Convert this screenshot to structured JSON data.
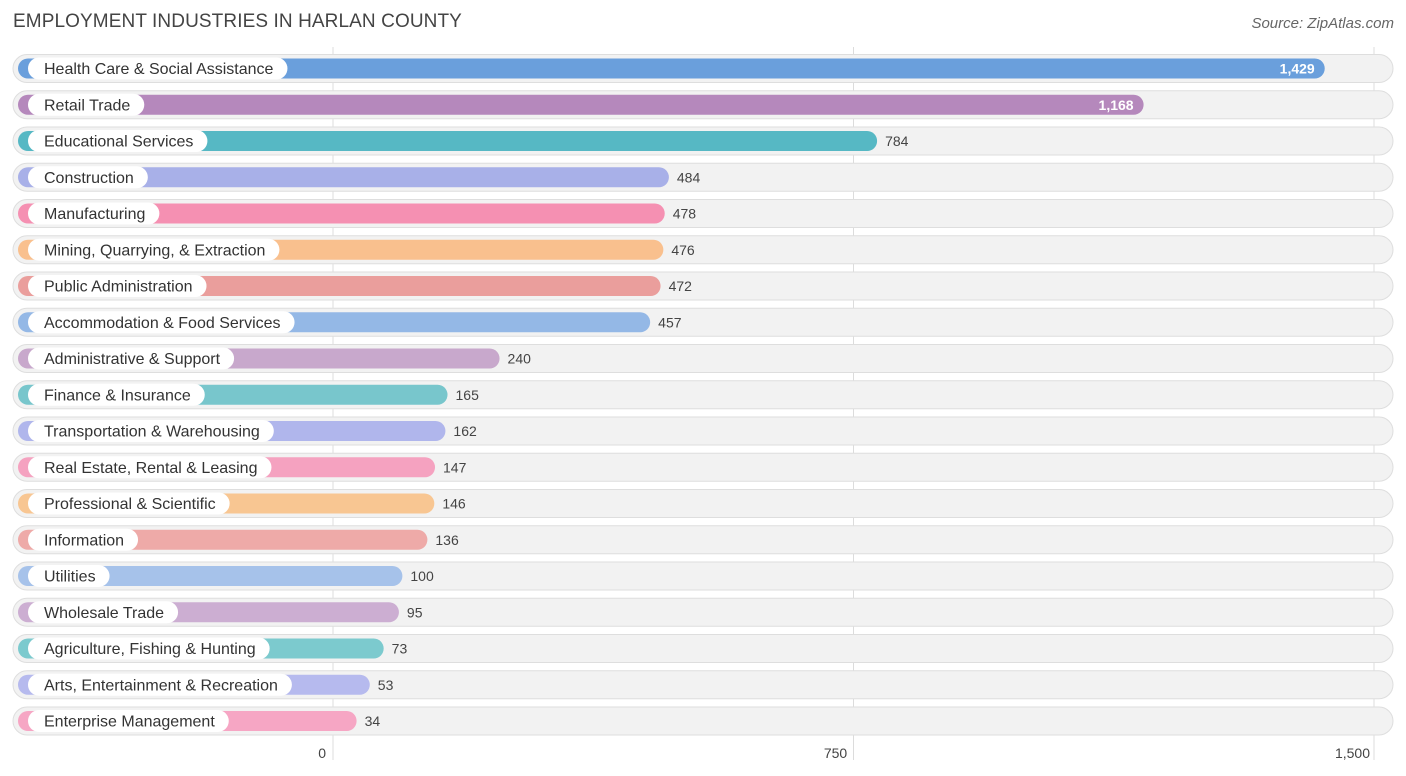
{
  "chart_data": {
    "type": "bar",
    "orientation": "horizontal",
    "title": "EMPLOYMENT INDUSTRIES IN HARLAN COUNTY",
    "source": "Source: ZipAtlas.com",
    "xlim": [
      0,
      1500
    ],
    "ticks": [
      0,
      750,
      1500
    ],
    "tick_labels": [
      "0",
      "750",
      "1,500"
    ],
    "grid": true,
    "categories": [
      "Health Care & Social Assistance",
      "Retail Trade",
      "Educational Services",
      "Construction",
      "Manufacturing",
      "Mining, Quarrying, & Extraction",
      "Public Administration",
      "Accommodation & Food Services",
      "Administrative & Support",
      "Finance & Insurance",
      "Transportation & Warehousing",
      "Real Estate, Rental & Leasing",
      "Professional & Scientific",
      "Information",
      "Utilities",
      "Wholesale Trade",
      "Agriculture, Fishing & Hunting",
      "Arts, Entertainment & Recreation",
      "Enterprise Management"
    ],
    "values": [
      1429,
      1168,
      784,
      484,
      478,
      476,
      472,
      457,
      240,
      165,
      162,
      147,
      146,
      136,
      100,
      95,
      73,
      53,
      34
    ],
    "value_labels": [
      "1,429",
      "1,168",
      "784",
      "484",
      "478",
      "476",
      "472",
      "457",
      "240",
      "165",
      "162",
      "147",
      "146",
      "136",
      "100",
      "95",
      "73",
      "53",
      "34"
    ],
    "colors": [
      "#6a9fdc",
      "#b588bc",
      "#56b8c4",
      "#a8b0e8",
      "#f590b2",
      "#f9c08e",
      "#ea9e9c",
      "#94b8e6",
      "#c8a8cc",
      "#78c6cc",
      "#b0b6ec",
      "#f5a2c0",
      "#f8c692",
      "#eeaaa8",
      "#a6c2ea",
      "#ccaed2",
      "#7ccace",
      "#b6baee",
      "#f6a6c4"
    ]
  }
}
